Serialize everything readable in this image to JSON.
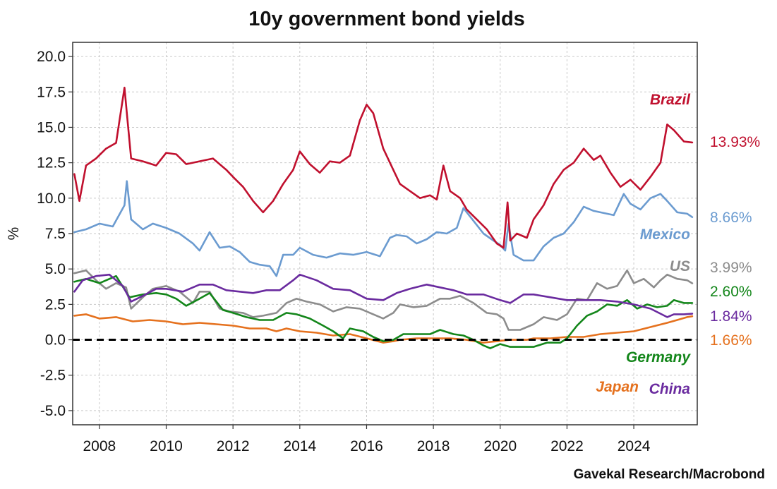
{
  "chart_data": {
    "type": "line",
    "title": "10y government bond yields",
    "ylabel": "%",
    "xlabel": "",
    "source": "Gavekal Research/Macrobond",
    "xlim": [
      2007.2,
      2025.9
    ],
    "ylim": [
      -6,
      21
    ],
    "y_ticks": [
      20.0,
      17.5,
      15.0,
      12.5,
      10.0,
      7.5,
      5.0,
      2.5,
      0.0,
      -2.5,
      -5.0
    ],
    "y_tick_labels": [
      "20.0",
      "17.5",
      "15.0",
      "12.5",
      "10.0",
      "7.5",
      "5.0",
      "2.5",
      "0.0",
      "-2.5",
      "-5.0"
    ],
    "x_ticks": [
      2008,
      2010,
      2012,
      2014,
      2016,
      2018,
      2020,
      2022,
      2024
    ],
    "x_tick_labels": [
      "2008",
      "2010",
      "2012",
      "2014",
      "2016",
      "2018",
      "2020",
      "2022",
      "2024"
    ],
    "grid": true,
    "zero_line": true,
    "series": [
      {
        "name": "Brazil",
        "color": "#c0102e",
        "last_label": "13.93%",
        "x": [
          2007.25,
          2007.4,
          2007.6,
          2007.9,
          2008.2,
          2008.5,
          2008.75,
          2008.83,
          2008.95,
          2009.3,
          2009.7,
          2010.0,
          2010.3,
          2010.6,
          2011.0,
          2011.4,
          2011.8,
          2012.0,
          2012.3,
          2012.6,
          2012.9,
          2013.2,
          2013.5,
          2013.8,
          2014.0,
          2014.3,
          2014.6,
          2014.9,
          2015.2,
          2015.5,
          2015.8,
          2016.0,
          2016.2,
          2016.5,
          2016.8,
          2017.0,
          2017.3,
          2017.6,
          2017.9,
          2018.1,
          2018.3,
          2018.5,
          2018.8,
          2019.0,
          2019.3,
          2019.6,
          2019.9,
          2020.1,
          2020.22,
          2020.3,
          2020.5,
          2020.8,
          2021.0,
          2021.3,
          2021.6,
          2021.9,
          2022.2,
          2022.5,
          2022.8,
          2023.0,
          2023.3,
          2023.6,
          2023.9,
          2024.2,
          2024.5,
          2024.8,
          2025.0,
          2025.2,
          2025.5,
          2025.75
        ],
        "y": [
          11.7,
          9.8,
          12.3,
          12.8,
          13.5,
          13.9,
          17.8,
          15.8,
          12.8,
          12.6,
          12.3,
          13.2,
          13.1,
          12.4,
          12.6,
          12.8,
          12.0,
          11.5,
          10.8,
          9.8,
          9.0,
          9.8,
          11.0,
          12.0,
          13.3,
          12.4,
          11.8,
          12.6,
          12.5,
          13.0,
          15.5,
          16.6,
          16.0,
          13.5,
          12.0,
          11.0,
          10.5,
          10.0,
          10.2,
          9.9,
          12.3,
          10.5,
          10.0,
          9.2,
          8.5,
          7.8,
          6.8,
          6.5,
          9.7,
          7.0,
          7.5,
          7.2,
          8.5,
          9.5,
          11.0,
          12.0,
          12.5,
          13.5,
          12.7,
          13.0,
          11.8,
          10.8,
          11.3,
          10.6,
          11.5,
          12.5,
          15.2,
          14.8,
          14.0,
          13.93
        ]
      },
      {
        "name": "Mexico",
        "color": "#6b9bd0",
        "last_label": "8.66%",
        "x": [
          2007.25,
          2007.6,
          2008.0,
          2008.4,
          2008.75,
          2008.82,
          2008.95,
          2009.3,
          2009.6,
          2010.0,
          2010.4,
          2010.8,
          2011.0,
          2011.3,
          2011.6,
          2011.9,
          2012.2,
          2012.5,
          2012.8,
          2013.1,
          2013.3,
          2013.5,
          2013.8,
          2014.0,
          2014.4,
          2014.8,
          2015.2,
          2015.6,
          2016.0,
          2016.4,
          2016.7,
          2016.9,
          2017.2,
          2017.5,
          2017.8,
          2018.1,
          2018.4,
          2018.7,
          2018.9,
          2019.2,
          2019.5,
          2019.8,
          2020.0,
          2020.15,
          2020.25,
          2020.4,
          2020.7,
          2021.0,
          2021.3,
          2021.6,
          2021.9,
          2022.2,
          2022.5,
          2022.8,
          2023.0,
          2023.4,
          2023.7,
          2023.9,
          2024.2,
          2024.5,
          2024.8,
          2025.0,
          2025.3,
          2025.6,
          2025.75
        ],
        "y": [
          7.6,
          7.8,
          8.2,
          8.0,
          9.5,
          11.2,
          8.5,
          7.8,
          8.2,
          7.9,
          7.5,
          6.8,
          6.3,
          7.6,
          6.5,
          6.6,
          6.2,
          5.5,
          5.3,
          5.2,
          4.5,
          6.0,
          6.0,
          6.5,
          6.0,
          5.8,
          6.1,
          6.0,
          6.2,
          5.9,
          7.2,
          7.4,
          7.3,
          6.8,
          7.1,
          7.6,
          7.5,
          7.9,
          9.3,
          8.4,
          7.5,
          7.0,
          6.7,
          6.3,
          8.2,
          6.0,
          5.6,
          5.6,
          6.6,
          7.2,
          7.5,
          8.3,
          9.4,
          9.1,
          9.0,
          8.8,
          10.3,
          9.6,
          9.2,
          10.0,
          10.3,
          9.8,
          9.0,
          8.9,
          8.66
        ]
      },
      {
        "name": "US",
        "color": "#8c8c8c",
        "last_label": "3.99%",
        "x": [
          2007.25,
          2007.6,
          2007.9,
          2008.2,
          2008.5,
          2008.8,
          2008.95,
          2009.3,
          2009.6,
          2010.0,
          2010.4,
          2010.8,
          2011.0,
          2011.3,
          2011.6,
          2011.9,
          2012.3,
          2012.6,
          2012.9,
          2013.3,
          2013.6,
          2013.9,
          2014.2,
          2014.6,
          2015.0,
          2015.4,
          2015.8,
          2016.2,
          2016.5,
          2016.8,
          2017.0,
          2017.4,
          2017.8,
          2018.2,
          2018.5,
          2018.8,
          2019.2,
          2019.6,
          2019.9,
          2020.1,
          2020.25,
          2020.6,
          2021.0,
          2021.3,
          2021.7,
          2022.0,
          2022.3,
          2022.6,
          2022.9,
          2023.2,
          2023.5,
          2023.8,
          2024.0,
          2024.3,
          2024.6,
          2024.8,
          2025.0,
          2025.3,
          2025.6,
          2025.75
        ],
        "y": [
          4.7,
          4.9,
          4.2,
          3.6,
          4.0,
          3.7,
          2.2,
          3.0,
          3.6,
          3.8,
          3.4,
          2.6,
          3.4,
          3.4,
          2.2,
          2.0,
          1.9,
          1.6,
          1.7,
          1.9,
          2.6,
          2.9,
          2.7,
          2.5,
          2.0,
          2.3,
          2.2,
          1.8,
          1.5,
          1.9,
          2.5,
          2.3,
          2.4,
          2.9,
          2.9,
          3.1,
          2.6,
          1.9,
          1.8,
          1.5,
          0.7,
          0.7,
          1.1,
          1.6,
          1.4,
          1.8,
          2.9,
          2.8,
          4.0,
          3.6,
          3.8,
          4.9,
          4.0,
          4.3,
          3.7,
          4.2,
          4.6,
          4.3,
          4.2,
          3.99
        ]
      },
      {
        "name": "Germany",
        "color": "#13861a",
        "last_label": "2.60%",
        "x": [
          2007.25,
          2007.6,
          2008.0,
          2008.5,
          2008.9,
          2009.3,
          2009.7,
          2010.0,
          2010.3,
          2010.6,
          2011.0,
          2011.3,
          2011.7,
          2012.0,
          2012.4,
          2012.8,
          2013.2,
          2013.6,
          2013.9,
          2014.3,
          2014.7,
          2015.0,
          2015.3,
          2015.5,
          2015.9,
          2016.2,
          2016.5,
          2016.8,
          2017.1,
          2017.5,
          2017.9,
          2018.2,
          2018.6,
          2018.9,
          2019.2,
          2019.5,
          2019.7,
          2020.0,
          2020.3,
          2020.7,
          2021.0,
          2021.4,
          2021.8,
          2022.0,
          2022.3,
          2022.6,
          2022.9,
          2023.2,
          2023.5,
          2023.8,
          2024.1,
          2024.4,
          2024.7,
          2025.0,
          2025.2,
          2025.5,
          2025.75
        ],
        "y": [
          4.1,
          4.3,
          4.0,
          4.5,
          3.0,
          3.2,
          3.3,
          3.2,
          2.9,
          2.4,
          2.9,
          3.3,
          2.1,
          1.9,
          1.6,
          1.4,
          1.4,
          1.9,
          1.8,
          1.5,
          1.0,
          0.6,
          0.1,
          0.8,
          0.6,
          0.2,
          -0.1,
          0.0,
          0.4,
          0.4,
          0.4,
          0.7,
          0.4,
          0.3,
          0.0,
          -0.4,
          -0.6,
          -0.3,
          -0.5,
          -0.5,
          -0.5,
          -0.2,
          -0.2,
          0.1,
          1.0,
          1.7,
          2.0,
          2.5,
          2.4,
          2.8,
          2.2,
          2.5,
          2.3,
          2.4,
          2.8,
          2.6,
          2.6
        ]
      },
      {
        "name": "China",
        "color": "#6a2b9f",
        "last_label": "1.84%",
        "x": [
          2007.25,
          2007.5,
          2007.9,
          2008.3,
          2008.7,
          2008.95,
          2009.3,
          2009.7,
          2010.0,
          2010.5,
          2011.0,
          2011.4,
          2011.8,
          2012.2,
          2012.6,
          2013.0,
          2013.4,
          2013.8,
          2014.0,
          2014.5,
          2015.0,
          2015.5,
          2016.0,
          2016.5,
          2016.9,
          2017.3,
          2017.8,
          2018.2,
          2018.6,
          2019.0,
          2019.5,
          2020.0,
          2020.3,
          2020.7,
          2021.0,
          2021.5,
          2022.0,
          2022.5,
          2023.0,
          2023.5,
          2024.0,
          2024.5,
          2025.0,
          2025.2,
          2025.5,
          2025.75
        ],
        "y": [
          3.4,
          4.2,
          4.5,
          4.6,
          3.8,
          2.7,
          3.1,
          3.6,
          3.6,
          3.4,
          3.9,
          3.9,
          3.5,
          3.4,
          3.3,
          3.5,
          3.5,
          4.2,
          4.6,
          4.2,
          3.6,
          3.5,
          2.9,
          2.8,
          3.3,
          3.6,
          3.9,
          3.7,
          3.5,
          3.2,
          3.2,
          2.8,
          2.6,
          3.2,
          3.2,
          3.0,
          2.8,
          2.8,
          2.8,
          2.7,
          2.5,
          2.2,
          1.6,
          1.8,
          1.8,
          1.84
        ]
      },
      {
        "name": "Japan",
        "color": "#e5711e",
        "last_label": "1.66%",
        "x": [
          2007.25,
          2007.6,
          2008.0,
          2008.5,
          2009.0,
          2009.5,
          2010.0,
          2010.5,
          2011.0,
          2011.5,
          2012.0,
          2012.5,
          2013.0,
          2013.3,
          2013.6,
          2014.0,
          2014.5,
          2015.0,
          2015.5,
          2016.0,
          2016.5,
          2016.8,
          2017.0,
          2017.5,
          2018.0,
          2018.5,
          2019.0,
          2019.5,
          2019.9,
          2020.3,
          2020.8,
          2021.0,
          2021.5,
          2022.0,
          2022.5,
          2023.0,
          2023.5,
          2024.0,
          2024.5,
          2025.0,
          2025.3,
          2025.6,
          2025.75
        ],
        "y": [
          1.7,
          1.8,
          1.5,
          1.6,
          1.3,
          1.4,
          1.3,
          1.1,
          1.2,
          1.1,
          1.0,
          0.8,
          0.8,
          0.6,
          0.8,
          0.6,
          0.5,
          0.3,
          0.4,
          0.1,
          -0.2,
          -0.1,
          0.0,
          0.1,
          0.1,
          0.1,
          0.0,
          -0.2,
          -0.1,
          0.0,
          0.0,
          0.1,
          0.1,
          0.2,
          0.2,
          0.4,
          0.5,
          0.6,
          0.9,
          1.2,
          1.4,
          1.6,
          1.66
        ]
      }
    ]
  }
}
